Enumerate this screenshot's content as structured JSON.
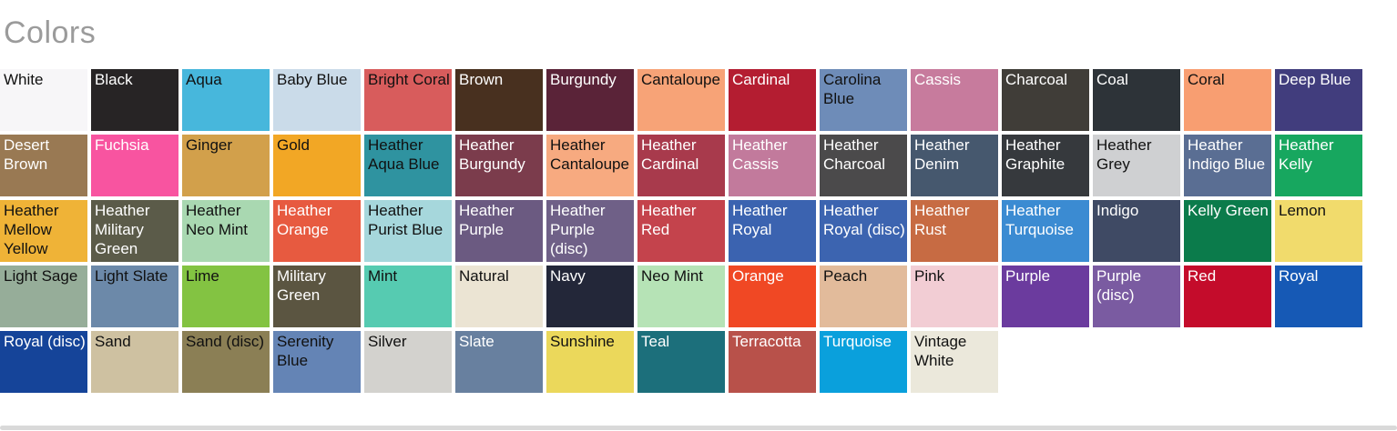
{
  "page": {
    "title": "Colors"
  },
  "divider": {
    "color": "#d9d9d9"
  },
  "grid": {
    "columns": 15,
    "swatches": [
      {
        "label": "White",
        "bg": "#f7f6f8",
        "text": "#111111"
      },
      {
        "label": "Black",
        "bg": "#272425",
        "text": "#ffffff"
      },
      {
        "label": "Aqua",
        "bg": "#47b7dc",
        "text": "#111111"
      },
      {
        "label": "Baby Blue",
        "bg": "#cadbe9",
        "text": "#111111"
      },
      {
        "label": "Bright Coral",
        "bg": "#d85c5c",
        "text": "#111111"
      },
      {
        "label": "Brown",
        "bg": "#48301f",
        "text": "#ffffff"
      },
      {
        "label": "Burgundy",
        "bg": "#5a2338",
        "text": "#ffffff"
      },
      {
        "label": "Cantaloupe",
        "bg": "#f7a377",
        "text": "#111111"
      },
      {
        "label": "Cardinal",
        "bg": "#b41d31",
        "text": "#ffffff"
      },
      {
        "label": "Carolina Blue",
        "bg": "#6e8cb8",
        "text": "#111111"
      },
      {
        "label": "Cassis",
        "bg": "#c77b9d",
        "text": "#ffffff"
      },
      {
        "label": "Charcoal",
        "bg": "#403d38",
        "text": "#ffffff"
      },
      {
        "label": "Coal",
        "bg": "#2d3338",
        "text": "#ffffff"
      },
      {
        "label": "Coral",
        "bg": "#f89e71",
        "text": "#111111"
      },
      {
        "label": "Deep Blue",
        "bg": "#413d7d",
        "text": "#ffffff"
      },
      {
        "label": "Desert Brown",
        "bg": "#997953",
        "text": "#ffffff"
      },
      {
        "label": "Fuchsia",
        "bg": "#f854a0",
        "text": "#ffffff"
      },
      {
        "label": "Ginger",
        "bg": "#d2a04b",
        "text": "#111111"
      },
      {
        "label": "Gold",
        "bg": "#f2a725",
        "text": "#111111"
      },
      {
        "label": "Heather Aqua Blue",
        "bg": "#2f93a0",
        "text": "#111111"
      },
      {
        "label": "Heather Burgundy",
        "bg": "#7b3c4c",
        "text": "#ffffff"
      },
      {
        "label": "Heather Cantaloupe",
        "bg": "#f7aa80",
        "text": "#111111"
      },
      {
        "label": "Heather Cardinal",
        "bg": "#a83a4c",
        "text": "#ffffff"
      },
      {
        "label": "Heather Cassis",
        "bg": "#c27a9c",
        "text": "#ffffff"
      },
      {
        "label": "Heather Charcoal",
        "bg": "#4b4a4b",
        "text": "#ffffff"
      },
      {
        "label": "Heather Denim",
        "bg": "#46586e",
        "text": "#ffffff"
      },
      {
        "label": "Heather Graphite",
        "bg": "#36393d",
        "text": "#ffffff"
      },
      {
        "label": "Heather Grey",
        "bg": "#cfd0d2",
        "text": "#111111"
      },
      {
        "label": "Heather Indigo Blue",
        "bg": "#5a6e93",
        "text": "#ffffff"
      },
      {
        "label": "Heather Kelly",
        "bg": "#17a75f",
        "text": "#ffffff"
      },
      {
        "label": "Heather Mellow Yellow",
        "bg": "#efb337",
        "text": "#111111"
      },
      {
        "label": "Heather Military Green",
        "bg": "#5b5b49",
        "text": "#ffffff"
      },
      {
        "label": "Heather Neo Mint",
        "bg": "#a9d8b1",
        "text": "#111111"
      },
      {
        "label": "Heather Orange",
        "bg": "#e75a40",
        "text": "#ffffff"
      },
      {
        "label": "Heather Purist Blue",
        "bg": "#a6d7dc",
        "text": "#111111"
      },
      {
        "label": "Heather Purple",
        "bg": "#6b5a81",
        "text": "#ffffff"
      },
      {
        "label": "Heather Purple (disc)",
        "bg": "#6f6087",
        "text": "#ffffff"
      },
      {
        "label": "Heather Red",
        "bg": "#c4434c",
        "text": "#ffffff"
      },
      {
        "label": "Heather Royal",
        "bg": "#3b63b0",
        "text": "#ffffff"
      },
      {
        "label": "Heather Royal (disc)",
        "bg": "#3c64b0",
        "text": "#ffffff"
      },
      {
        "label": "Heather Rust",
        "bg": "#c76b43",
        "text": "#ffffff"
      },
      {
        "label": "Heather Turquoise",
        "bg": "#3b8bd2",
        "text": "#ffffff"
      },
      {
        "label": "Indigo",
        "bg": "#3f4a64",
        "text": "#ffffff"
      },
      {
        "label": "Kelly Green",
        "bg": "#0b7b4b",
        "text": "#ffffff"
      },
      {
        "label": "Lemon",
        "bg": "#f1db6c",
        "text": "#111111"
      },
      {
        "label": "Light Sage",
        "bg": "#96ad99",
        "text": "#111111"
      },
      {
        "label": "Light Slate",
        "bg": "#6c89a9",
        "text": "#111111"
      },
      {
        "label": "Lime",
        "bg": "#83c342",
        "text": "#111111"
      },
      {
        "label": "Military Green",
        "bg": "#5b5541",
        "text": "#ffffff"
      },
      {
        "label": "Mint",
        "bg": "#56cbb1",
        "text": "#111111"
      },
      {
        "label": "Natural",
        "bg": "#ebe4d3",
        "text": "#111111"
      },
      {
        "label": "Navy",
        "bg": "#232739",
        "text": "#ffffff"
      },
      {
        "label": "Neo Mint",
        "bg": "#b6e3b6",
        "text": "#111111"
      },
      {
        "label": "Orange",
        "bg": "#f04824",
        "text": "#ffffff"
      },
      {
        "label": "Peach",
        "bg": "#e2bb9b",
        "text": "#111111"
      },
      {
        "label": "Pink",
        "bg": "#f2cdd4",
        "text": "#111111"
      },
      {
        "label": "Purple",
        "bg": "#6b3b9e",
        "text": "#ffffff"
      },
      {
        "label": "Purple (disc)",
        "bg": "#7a5ba1",
        "text": "#ffffff"
      },
      {
        "label": "Red",
        "bg": "#c40c2b",
        "text": "#ffffff"
      },
      {
        "label": "Royal",
        "bg": "#1659b5",
        "text": "#ffffff"
      },
      {
        "label": "Royal (disc)",
        "bg": "#154499",
        "text": "#ffffff"
      },
      {
        "label": "Sand",
        "bg": "#cec1a1",
        "text": "#111111"
      },
      {
        "label": "Sand (disc)",
        "bg": "#8b7f55",
        "text": "#111111"
      },
      {
        "label": "Serenity Blue",
        "bg": "#6484b5",
        "text": "#111111"
      },
      {
        "label": "Silver",
        "bg": "#d3d2ce",
        "text": "#111111"
      },
      {
        "label": "Slate",
        "bg": "#68809f",
        "text": "#ffffff"
      },
      {
        "label": "Sunshine",
        "bg": "#ebd85b",
        "text": "#111111"
      },
      {
        "label": "Teal",
        "bg": "#1c6f7b",
        "text": "#ffffff"
      },
      {
        "label": "Terracotta",
        "bg": "#b8514a",
        "text": "#ffffff"
      },
      {
        "label": "Turquoise",
        "bg": "#0aa0dc",
        "text": "#ffffff"
      },
      {
        "label": "Vintage White",
        "bg": "#ebe8db",
        "text": "#111111"
      }
    ]
  }
}
